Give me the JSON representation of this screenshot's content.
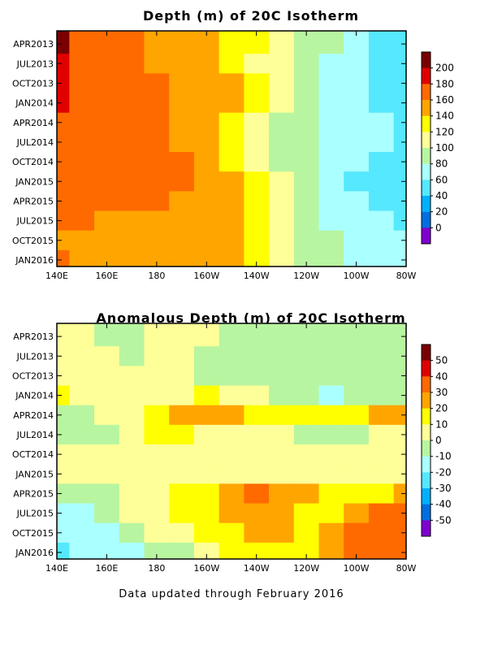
{
  "footer": "Data updated through February 2016",
  "chart_data": [
    {
      "type": "heatmap",
      "title": "Depth (m) of 20C Isotherm",
      "x_ticks": [
        "140E",
        "160E",
        "180",
        "160W",
        "140W",
        "120W",
        "100W",
        "80W"
      ],
      "y_ticks": [
        "APR2013",
        "JUL2013",
        "OCT2013",
        "JAN2014",
        "APR2014",
        "JUL2014",
        "OCT2014",
        "JAN2015",
        "APR2015",
        "JUL2015",
        "OCT2015",
        "JAN2016"
      ],
      "colorbar": {
        "labels": [
          "200",
          "180",
          "160",
          "140",
          "120",
          "100",
          "80",
          "60",
          "40",
          "20",
          "0"
        ],
        "colors": [
          "#7a0000",
          "#e00000",
          "#ff6a00",
          "#ffa500",
          "#ffff00",
          "#ffff99",
          "#b8f5a0",
          "#aaffff",
          "#55e8ff",
          "#00b0ff",
          "#0070e0",
          "#8000d0"
        ]
      },
      "x_range": [
        "140E",
        "80W"
      ],
      "y_range": [
        "FEB2013",
        "FEB2016"
      ],
      "grid": false,
      "columns": [
        "140E",
        "150E",
        "160E",
        "170E",
        "180",
        "170W",
        "160W",
        "150W",
        "140W",
        "130W",
        "120W",
        "110W",
        "100W",
        "90W",
        "80W"
      ],
      "rows": [
        {
          "time": "APR2013",
          "values": [
            205,
            175,
            165,
            160,
            155,
            150,
            145,
            135,
            120,
            110,
            95,
            80,
            60,
            45,
            40
          ]
        },
        {
          "time": "JUL2013",
          "values": [
            185,
            175,
            165,
            160,
            155,
            150,
            145,
            135,
            115,
            100,
            85,
            70,
            60,
            50,
            45
          ]
        },
        {
          "time": "OCT2013",
          "values": [
            180,
            175,
            170,
            165,
            160,
            155,
            150,
            140,
            125,
            105,
            85,
            70,
            60,
            55,
            50
          ]
        },
        {
          "time": "JAN2014",
          "values": [
            180,
            178,
            172,
            168,
            160,
            155,
            150,
            140,
            125,
            105,
            85,
            70,
            60,
            55,
            50
          ]
        },
        {
          "time": "APR2014",
          "values": [
            175,
            170,
            168,
            165,
            162,
            158,
            140,
            125,
            110,
            95,
            80,
            70,
            65,
            60,
            55
          ]
        },
        {
          "time": "JUL2014",
          "values": [
            170,
            168,
            165,
            165,
            160,
            158,
            150,
            130,
            110,
            90,
            80,
            70,
            65,
            60,
            55
          ]
        },
        {
          "time": "OCT2014",
          "values": [
            165,
            168,
            175,
            165,
            162,
            160,
            150,
            135,
            110,
            95,
            80,
            70,
            60,
            55,
            50
          ]
        },
        {
          "time": "JAN2015",
          "values": [
            165,
            170,
            168,
            165,
            162,
            160,
            155,
            140,
            120,
            100,
            85,
            70,
            55,
            50,
            45
          ]
        },
        {
          "time": "APR2015",
          "values": [
            160,
            165,
            165,
            162,
            160,
            158,
            155,
            140,
            125,
            105,
            90,
            75,
            60,
            55,
            50
          ]
        },
        {
          "time": "JUL2015",
          "values": [
            160,
            160,
            158,
            158,
            155,
            155,
            150,
            140,
            120,
            100,
            85,
            75,
            65,
            60,
            55
          ]
        },
        {
          "time": "OCT2015",
          "values": [
            150,
            155,
            155,
            155,
            155,
            152,
            150,
            145,
            130,
            110,
            90,
            80,
            70,
            65,
            60
          ]
        },
        {
          "time": "JAN2016",
          "values": [
            160,
            155,
            150,
            150,
            150,
            148,
            145,
            140,
            130,
            115,
            95,
            85,
            75,
            70,
            65
          ]
        }
      ]
    },
    {
      "type": "heatmap",
      "title": "Anomalous Depth (m) of 20C Isotherm",
      "x_ticks": [
        "140E",
        "160E",
        "180",
        "160W",
        "140W",
        "120W",
        "100W",
        "80W"
      ],
      "y_ticks": [
        "APR2013",
        "JUL2013",
        "OCT2013",
        "JAN2014",
        "APR2014",
        "JUL2014",
        "OCT2014",
        "JAN2015",
        "APR2015",
        "JUL2015",
        "OCT2015",
        "JAN2016"
      ],
      "colorbar": {
        "labels": [
          "50",
          "40",
          "30",
          "20",
          "10",
          "0",
          "-10",
          "-20",
          "-30",
          "-40",
          "-50"
        ],
        "colors": [
          "#7a0000",
          "#e00000",
          "#ff6a00",
          "#ffa500",
          "#ffff00",
          "#ffff99",
          "#b8f5a0",
          "#aaffff",
          "#55e8ff",
          "#00b0ff",
          "#0070e0",
          "#8000d0"
        ]
      },
      "x_range": [
        "140E",
        "80W"
      ],
      "y_range": [
        "FEB2013",
        "FEB2016"
      ],
      "grid": false,
      "columns": [
        "140E",
        "150E",
        "160E",
        "170E",
        "180",
        "170W",
        "160W",
        "150W",
        "140W",
        "130W",
        "120W",
        "110W",
        "100W",
        "90W",
        "80W"
      ],
      "rows": [
        {
          "time": "APR2013",
          "values": [
            5,
            0,
            -5,
            -5,
            0,
            0,
            2,
            -5,
            -10,
            -5,
            -5,
            -10,
            -5,
            -5,
            -5
          ]
        },
        {
          "time": "JUL2013",
          "values": [
            8,
            5,
            0,
            -5,
            0,
            0,
            -5,
            -10,
            -10,
            -5,
            -10,
            -5,
            -5,
            -8,
            -8
          ]
        },
        {
          "time": "OCT2013",
          "values": [
            5,
            5,
            5,
            0,
            0,
            2,
            -2,
            -5,
            -5,
            -10,
            -5,
            -10,
            -10,
            -5,
            -5
          ]
        },
        {
          "time": "JAN2014",
          "values": [
            10,
            5,
            5,
            5,
            5,
            5,
            10,
            5,
            0,
            -5,
            -10,
            -15,
            -10,
            -5,
            -5
          ]
        },
        {
          "time": "APR2014",
          "values": [
            -5,
            -5,
            0,
            5,
            15,
            25,
            25,
            20,
            15,
            10,
            15,
            15,
            15,
            20,
            25
          ]
        },
        {
          "time": "JUL2014",
          "values": [
            -5,
            -5,
            -5,
            5,
            10,
            10,
            5,
            0,
            0,
            0,
            -5,
            -10,
            -5,
            0,
            5
          ]
        },
        {
          "time": "OCT2014",
          "values": [
            0,
            0,
            5,
            5,
            5,
            5,
            5,
            5,
            0,
            0,
            0,
            0,
            0,
            0,
            5
          ]
        },
        {
          "time": "JAN2015",
          "values": [
            5,
            0,
            0,
            0,
            5,
            5,
            5,
            5,
            5,
            5,
            5,
            5,
            5,
            5,
            5
          ]
        },
        {
          "time": "APR2015",
          "values": [
            -10,
            -5,
            -5,
            5,
            5,
            10,
            15,
            25,
            30,
            25,
            20,
            15,
            15,
            15,
            20
          ]
        },
        {
          "time": "JUL2015",
          "values": [
            -20,
            -15,
            -10,
            0,
            5,
            10,
            15,
            20,
            25,
            25,
            15,
            15,
            20,
            30,
            35
          ]
        },
        {
          "time": "OCT2015",
          "values": [
            -20,
            -20,
            -15,
            -10,
            0,
            5,
            10,
            15,
            20,
            20,
            15,
            20,
            30,
            35,
            35
          ]
        },
        {
          "time": "JAN2016",
          "values": [
            -25,
            -20,
            -15,
            -15,
            -10,
            -5,
            0,
            10,
            15,
            15,
            15,
            20,
            30,
            30,
            30
          ]
        }
      ]
    }
  ]
}
